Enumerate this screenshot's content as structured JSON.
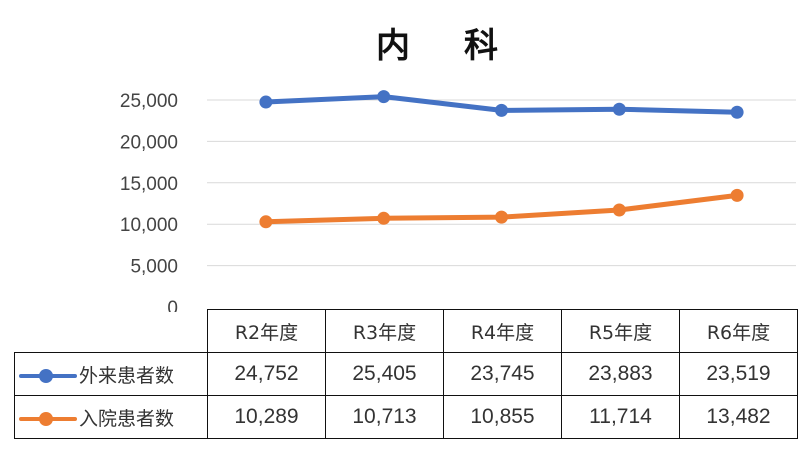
{
  "chart_data": {
    "type": "line",
    "title": "内　科",
    "title_chars": [
      "内",
      "科"
    ],
    "categories": [
      "R2年度",
      "R3年度",
      "R4年度",
      "R5年度",
      "R6年度"
    ],
    "ylim": [
      0,
      25000
    ],
    "yticks": [
      "0",
      "5,000",
      "10,000",
      "15,000",
      "20,000",
      "25,000"
    ],
    "ytick_values": [
      0,
      5000,
      10000,
      15000,
      20000,
      25000
    ],
    "grid": true,
    "legend": "data-table",
    "series": [
      {
        "name": "外来患者数",
        "color": "#4472c4",
        "values": [
          24752,
          25405,
          23745,
          23883,
          23519
        ],
        "labels": [
          "24,752",
          "25,405",
          "23,745",
          "23,883",
          "23,519"
        ]
      },
      {
        "name": "入院患者数",
        "color": "#ed7d31",
        "values": [
          10289,
          10713,
          10855,
          11714,
          13482
        ],
        "labels": [
          "10,289",
          "10,713",
          "10,855",
          "11,714",
          "13,482"
        ]
      }
    ]
  }
}
